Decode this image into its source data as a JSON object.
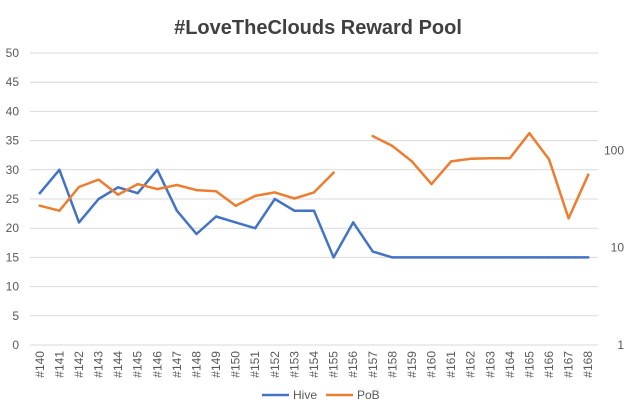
{
  "chart_data": {
    "type": "line",
    "title": "#LoveTheClouds Reward Pool",
    "categories": [
      "#140",
      "#141",
      "#142",
      "#143",
      "#144",
      "#145",
      "#146",
      "#147",
      "#148",
      "#149",
      "#150",
      "#151",
      "#152",
      "#153",
      "#154",
      "#155",
      "#156",
      "#157",
      "#158",
      "#159",
      "#160",
      "#161",
      "#162",
      "#163",
      "#164",
      "#165",
      "#166",
      "#167",
      "#168"
    ],
    "y_left": {
      "ticks": [
        0,
        5,
        10,
        15,
        20,
        25,
        30,
        35,
        40,
        45,
        50
      ],
      "range": [
        0,
        50
      ]
    },
    "y_right": {
      "scale": "log",
      "ticks": [
        1,
        10,
        100
      ],
      "range": [
        1,
        1000
      ]
    },
    "grid": true,
    "legend_position": "bottom",
    "series": [
      {
        "name": "Hive",
        "axis": "left",
        "color": "#4472C4",
        "values": [
          26,
          30,
          21,
          25,
          27,
          26,
          30,
          23,
          19,
          22,
          21,
          20,
          25,
          23,
          23,
          15,
          21,
          16,
          15,
          15,
          15,
          15,
          15,
          15,
          15,
          15,
          15,
          15,
          15
        ]
      },
      {
        "name": "PoB",
        "axis": "right",
        "color": "#ED7D31",
        "values": [
          27,
          24,
          42,
          50,
          35,
          45,
          40,
          44,
          39,
          38,
          27,
          34,
          37,
          32,
          37,
          59,
          null,
          140,
          111,
          77,
          45,
          77,
          82,
          83,
          83,
          150,
          81,
          20,
          56
        ]
      }
    ]
  }
}
